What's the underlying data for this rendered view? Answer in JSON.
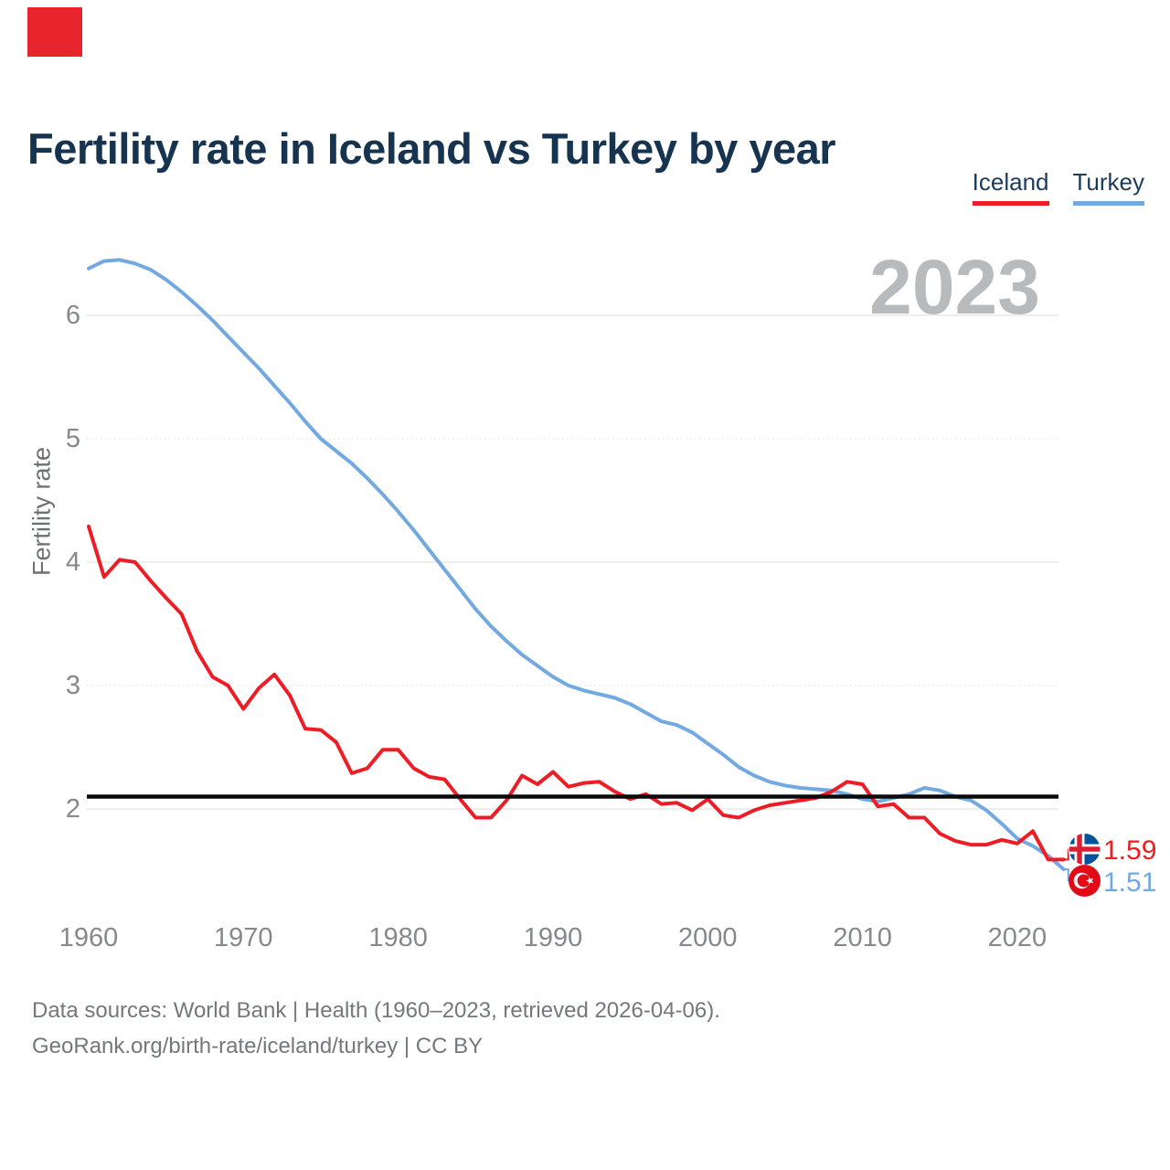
{
  "title": "Fertility rate in Iceland vs Turkey by year",
  "watermark": "2023",
  "ylabel": "Fertility rate",
  "legend": [
    {
      "label": "Iceland",
      "color": "#ee1d25"
    },
    {
      "label": "Turkey",
      "color": "#72a9e0"
    }
  ],
  "colors": {
    "accent_red": "#e8252d",
    "iceland_line": "#ee1d25",
    "turkey_line": "#72a9e0",
    "reference_line": "#0b0b0b",
    "title_navy": "#16334f",
    "tick_gray": "#85888c",
    "watermark_gray": "#b8bbbe"
  },
  "end_labels": [
    {
      "series": "Iceland",
      "value": "1.59"
    },
    {
      "series": "Turkey",
      "value": "1.51"
    }
  ],
  "footer": {
    "line1": "Data sources: World Bank | Health (1960–2023, retrieved 2026-04-06).",
    "line2": "GeoRank.org/birth-rate/iceland/turkey | CC BY"
  },
  "chart_data": {
    "type": "line",
    "title": "Fertility rate in Iceland vs Turkey by year",
    "xlabel": "",
    "ylabel": "Fertility rate",
    "xlim": [
      1960,
      2023
    ],
    "ylim": [
      1.3,
      6.6
    ],
    "xticks": [
      1960,
      1970,
      1980,
      1990,
      2000,
      2010,
      2020
    ],
    "yticks": [
      2,
      3,
      4,
      5,
      6
    ],
    "reference_line": 2.1,
    "legend_position": "top-right",
    "grid": "horizontal",
    "x": [
      1960,
      1961,
      1962,
      1963,
      1964,
      1965,
      1966,
      1967,
      1968,
      1969,
      1970,
      1971,
      1972,
      1973,
      1974,
      1975,
      1976,
      1977,
      1978,
      1979,
      1980,
      1981,
      1982,
      1983,
      1984,
      1985,
      1986,
      1987,
      1988,
      1989,
      1990,
      1991,
      1992,
      1993,
      1994,
      1995,
      1996,
      1997,
      1998,
      1999,
      2000,
      2001,
      2002,
      2003,
      2004,
      2005,
      2006,
      2007,
      2008,
      2009,
      2010,
      2011,
      2012,
      2013,
      2014,
      2015,
      2016,
      2017,
      2018,
      2019,
      2020,
      2021,
      2022,
      2023
    ],
    "series": [
      {
        "name": "Iceland",
        "color": "#ee1d25",
        "final_value": 1.59,
        "values": [
          4.29,
          3.88,
          4.02,
          4.0,
          3.85,
          3.71,
          3.58,
          3.28,
          3.07,
          3.0,
          2.81,
          2.98,
          3.09,
          2.92,
          2.65,
          2.64,
          2.54,
          2.29,
          2.33,
          2.48,
          2.48,
          2.33,
          2.26,
          2.24,
          2.08,
          1.93,
          1.93,
          2.07,
          2.27,
          2.2,
          2.3,
          2.18,
          2.21,
          2.22,
          2.14,
          2.08,
          2.12,
          2.04,
          2.05,
          1.99,
          2.08,
          1.95,
          1.93,
          1.99,
          2.03,
          2.05,
          2.07,
          2.09,
          2.14,
          2.22,
          2.2,
          2.02,
          2.04,
          1.93,
          1.93,
          1.8,
          1.74,
          1.71,
          1.71,
          1.75,
          1.72,
          1.82,
          1.59,
          1.59
        ]
      },
      {
        "name": "Turkey",
        "color": "#72a9e0",
        "final_value": 1.51,
        "values": [
          6.38,
          6.44,
          6.45,
          6.42,
          6.37,
          6.29,
          6.19,
          6.08,
          5.96,
          5.83,
          5.7,
          5.57,
          5.43,
          5.29,
          5.14,
          5.0,
          4.9,
          4.8,
          4.68,
          4.55,
          4.41,
          4.26,
          4.1,
          3.94,
          3.78,
          3.62,
          3.48,
          3.36,
          3.25,
          3.16,
          3.07,
          3.0,
          2.96,
          2.93,
          2.9,
          2.85,
          2.78,
          2.71,
          2.68,
          2.62,
          2.53,
          2.44,
          2.34,
          2.27,
          2.22,
          2.19,
          2.17,
          2.16,
          2.15,
          2.12,
          2.08,
          2.06,
          2.09,
          2.12,
          2.17,
          2.15,
          2.1,
          2.07,
          1.99,
          1.88,
          1.76,
          1.7,
          1.62,
          1.51
        ]
      }
    ]
  }
}
